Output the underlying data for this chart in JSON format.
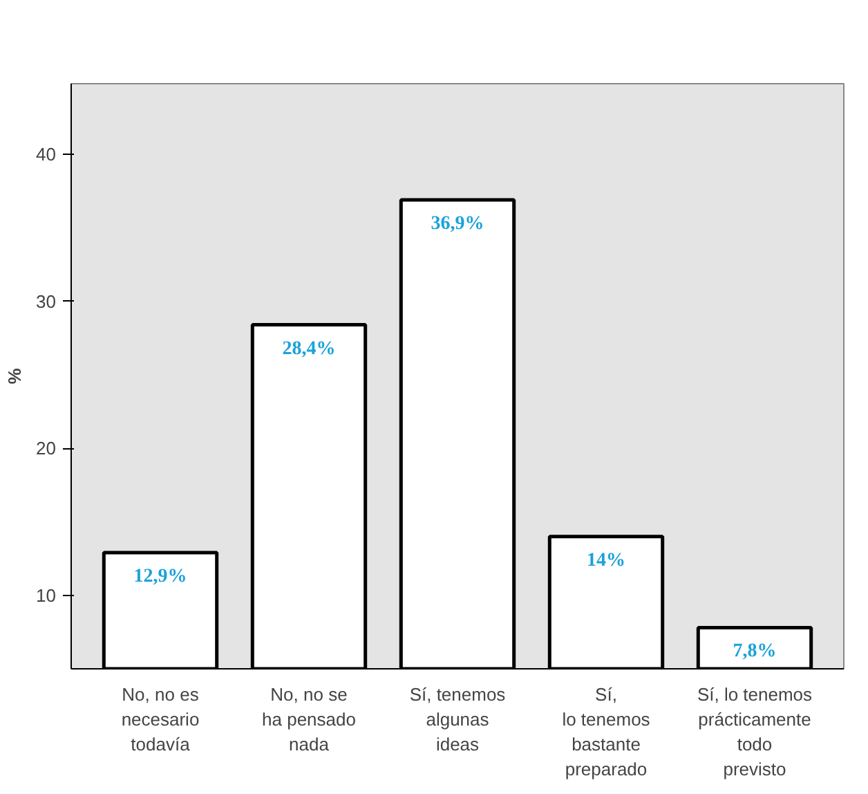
{
  "chart_data": {
    "type": "bar",
    "ylabel": "%",
    "categories": [
      "No, no es\nnecesario\ntodavía",
      "No, no se\nha pensado\nnada",
      "Sí, tenemos\nalgunas\nideas",
      "Sí,\nlo tenemos\nbastante\npreparado",
      "Sí, lo tenemos\nprácticamente\ntodo\nprevisto"
    ],
    "values": [
      12.9,
      28.4,
      36.9,
      14,
      7.8
    ],
    "value_labels": [
      "12,9%",
      "28,4%",
      "36,9%",
      "14%",
      "7,8%"
    ],
    "color": "#ffffff",
    "ylim": [
      5,
      44.8
    ],
    "yticks": [
      10,
      20,
      30,
      40
    ],
    "grid": false
  }
}
